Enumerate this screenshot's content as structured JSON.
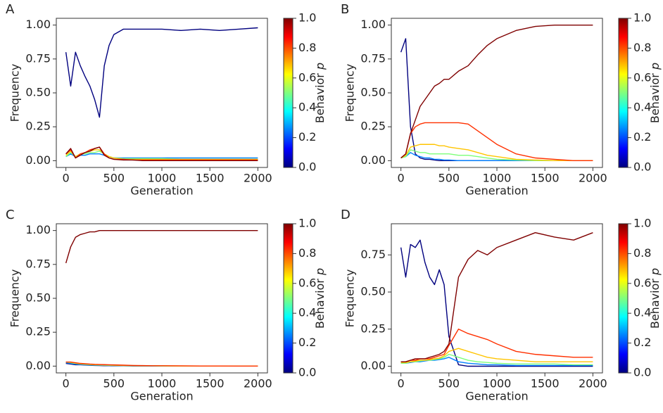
{
  "chart_data": [
    {
      "type": "line",
      "label": "A",
      "x_label": "Generation",
      "y_label": "Frequency",
      "xlim": [
        -100,
        2100
      ],
      "xticks": [
        0,
        500,
        1000,
        1500,
        2000
      ],
      "ylim": [
        -0.05,
        1.05
      ],
      "yticks": [
        {
          "value": 0,
          "label": "0.00"
        },
        {
          "value": 0.25,
          "label": "0.25"
        },
        {
          "value": 0.5,
          "label": "0.50"
        },
        {
          "value": 0.75,
          "label": "0.75"
        },
        {
          "value": 1,
          "label": "1.00"
        }
      ],
      "x": [
        0,
        50,
        100,
        150,
        200,
        250,
        300,
        350,
        400,
        450,
        500,
        600,
        700,
        800,
        900,
        1000,
        1200,
        1400,
        1600,
        1800,
        2000
      ],
      "series": [
        {
          "color": "#00007f",
          "values": [
            0.8,
            0.55,
            0.8,
            0.7,
            0.62,
            0.55,
            0.45,
            0.32,
            0.7,
            0.85,
            0.93,
            0.97,
            0.97,
            0.97,
            0.97,
            0.97,
            0.96,
            0.97,
            0.96,
            0.97,
            0.98
          ]
        },
        {
          "color": "#0080ff",
          "values": [
            0.03,
            0.05,
            0.03,
            0.04,
            0.04,
            0.05,
            0.05,
            0.05,
            0.04,
            0.03,
            0.02,
            0.02,
            0.02,
            0.02,
            0.02,
            0.02,
            0.02,
            0.02,
            0.02,
            0.02,
            0.02
          ]
        },
        {
          "color": "#7dff7a",
          "values": [
            0.03,
            0.06,
            0.03,
            0.05,
            0.05,
            0.06,
            0.06,
            0.07,
            0.05,
            0.03,
            0.02,
            0.015,
            0.015,
            0.015,
            0.015,
            0.015,
            0.01,
            0.01,
            0.01,
            0.01,
            0.01
          ]
        },
        {
          "color": "#ffc400",
          "values": [
            0.04,
            0.07,
            0.03,
            0.05,
            0.06,
            0.07,
            0.08,
            0.08,
            0.05,
            0.03,
            0.02,
            0.01,
            0.01,
            0.01,
            0.01,
            0.01,
            0.01,
            0.01,
            0.01,
            0.01,
            0.01
          ]
        },
        {
          "color": "#ff3000",
          "values": [
            0.05,
            0.08,
            0.02,
            0.05,
            0.06,
            0.08,
            0.09,
            0.1,
            0.05,
            0.02,
            0.01,
            0.01,
            0.005,
            0.005,
            0.005,
            0.005,
            0.005,
            0.005,
            0.005,
            0.005,
            0.005
          ]
        },
        {
          "color": "#7f0000",
          "values": [
            0.05,
            0.09,
            0.02,
            0.04,
            0.06,
            0.07,
            0.09,
            0.1,
            0.04,
            0.02,
            0.01,
            0.005,
            0.005,
            0,
            0,
            0,
            0,
            0,
            0,
            0,
            0
          ]
        }
      ],
      "colorbar": {
        "colors": [
          "#00007f",
          "#0000ff",
          "#007fff",
          "#00ffff",
          "#7fff7f",
          "#ffff00",
          "#ff7f00",
          "#ff0000",
          "#7f0000"
        ],
        "lim": [
          0,
          1
        ],
        "ticks": [
          {
            "value": 0,
            "label": "0.0"
          },
          {
            "value": 0.2,
            "label": "0.2"
          },
          {
            "value": 0.4,
            "label": "0.4"
          },
          {
            "value": 0.6,
            "label": "0.6"
          },
          {
            "value": 0.8,
            "label": "0.8"
          },
          {
            "value": 1,
            "label": "1.0"
          }
        ],
        "label": "Behavior",
        "symbol": "p"
      }
    },
    {
      "type": "line",
      "label": "B",
      "x_label": "Generation",
      "y_label": "Frequency",
      "xlim": [
        -100,
        2100
      ],
      "xticks": [
        0,
        500,
        1000,
        1500,
        2000
      ],
      "ylim": [
        -0.05,
        1.05
      ],
      "yticks": [
        {
          "value": 0,
          "label": "0.00"
        },
        {
          "value": 0.25,
          "label": "0.25"
        },
        {
          "value": 0.5,
          "label": "0.50"
        },
        {
          "value": 0.75,
          "label": "0.75"
        },
        {
          "value": 1,
          "label": "1.00"
        }
      ],
      "x": [
        0,
        50,
        100,
        150,
        200,
        250,
        300,
        350,
        400,
        450,
        500,
        600,
        700,
        800,
        900,
        1000,
        1200,
        1400,
        1600,
        1800,
        2000
      ],
      "series": [
        {
          "color": "#00007f",
          "values": [
            0.8,
            0.9,
            0.25,
            0.05,
            0.02,
            0.01,
            0.01,
            0.005,
            0,
            0,
            0,
            0,
            0,
            0,
            0,
            0,
            0,
            0,
            0,
            0,
            0
          ]
        },
        {
          "color": "#0080ff",
          "values": [
            0.02,
            0.03,
            0.06,
            0.04,
            0.03,
            0.02,
            0.02,
            0.01,
            0.01,
            0.005,
            0.005,
            0,
            0,
            0,
            0,
            0,
            0,
            0,
            0,
            0,
            0
          ]
        },
        {
          "color": "#7dff7a",
          "values": [
            0.02,
            0.03,
            0.08,
            0.07,
            0.06,
            0.06,
            0.05,
            0.05,
            0.05,
            0.05,
            0.05,
            0.04,
            0.04,
            0.03,
            0.02,
            0.01,
            0.005,
            0,
            0,
            0,
            0
          ]
        },
        {
          "color": "#ffc400",
          "values": [
            0.02,
            0.04,
            0.1,
            0.11,
            0.12,
            0.12,
            0.12,
            0.12,
            0.11,
            0.11,
            0.1,
            0.09,
            0.08,
            0.06,
            0.04,
            0.03,
            0.01,
            0.005,
            0,
            0,
            0
          ]
        },
        {
          "color": "#ff3000",
          "values": [
            0.02,
            0.05,
            0.2,
            0.25,
            0.27,
            0.28,
            0.28,
            0.28,
            0.28,
            0.28,
            0.28,
            0.28,
            0.27,
            0.22,
            0.17,
            0.12,
            0.05,
            0.02,
            0.01,
            0,
            0
          ]
        },
        {
          "color": "#7f0000",
          "values": [
            0.02,
            0.05,
            0.2,
            0.3,
            0.4,
            0.45,
            0.5,
            0.55,
            0.57,
            0.6,
            0.6,
            0.66,
            0.7,
            0.78,
            0.85,
            0.9,
            0.96,
            0.99,
            1,
            1,
            1
          ]
        }
      ],
      "colorbar": {
        "colors": [
          "#00007f",
          "#0000ff",
          "#007fff",
          "#00ffff",
          "#7fff7f",
          "#ffff00",
          "#ff7f00",
          "#ff0000",
          "#7f0000"
        ],
        "lim": [
          0,
          1
        ],
        "ticks": [
          {
            "value": 0,
            "label": "0.0"
          },
          {
            "value": 0.2,
            "label": "0.2"
          },
          {
            "value": 0.4,
            "label": "0.4"
          },
          {
            "value": 0.6,
            "label": "0.6"
          },
          {
            "value": 0.8,
            "label": "0.8"
          },
          {
            "value": 1,
            "label": "1.0"
          }
        ],
        "label": "Behavior",
        "symbol": "p"
      }
    },
    {
      "type": "line",
      "label": "C",
      "x_label": "Generation",
      "y_label": "Frequency",
      "xlim": [
        -100,
        2100
      ],
      "xticks": [
        0,
        500,
        1000,
        1500,
        2000
      ],
      "ylim": [
        -0.05,
        1.05
      ],
      "yticks": [
        {
          "value": 0,
          "label": "0.00"
        },
        {
          "value": 0.25,
          "label": "0.25"
        },
        {
          "value": 0.5,
          "label": "0.50"
        },
        {
          "value": 0.75,
          "label": "0.75"
        },
        {
          "value": 1,
          "label": "1.00"
        }
      ],
      "x": [
        0,
        50,
        100,
        150,
        200,
        250,
        300,
        350,
        400,
        450,
        500,
        600,
        700,
        800,
        900,
        1000,
        1200,
        1400,
        1600,
        1800,
        2000
      ],
      "series": [
        {
          "color": "#00007f",
          "values": [
            0.02,
            0.015,
            0.01,
            0.01,
            0.008,
            0.006,
            0.005,
            0.004,
            0.003,
            0.003,
            0.002,
            0.002,
            0.001,
            0.001,
            0.001,
            0,
            0,
            0,
            0,
            0,
            0
          ]
        },
        {
          "color": "#0080ff",
          "values": [
            0.025,
            0.02,
            0.015,
            0.012,
            0.01,
            0.008,
            0.007,
            0.006,
            0.005,
            0.004,
            0.004,
            0.003,
            0.002,
            0.002,
            0.001,
            0.001,
            0,
            0,
            0,
            0,
            0
          ]
        },
        {
          "color": "#7dff7a",
          "values": [
            0.03,
            0.025,
            0.02,
            0.016,
            0.013,
            0.011,
            0.009,
            0.008,
            0.007,
            0.006,
            0.005,
            0.004,
            0.003,
            0.002,
            0.002,
            0.001,
            0.001,
            0,
            0,
            0,
            0
          ]
        },
        {
          "color": "#ffc400",
          "values": [
            0.03,
            0.028,
            0.022,
            0.018,
            0.015,
            0.013,
            0.011,
            0.01,
            0.009,
            0.008,
            0.007,
            0.005,
            0.004,
            0.003,
            0.002,
            0.002,
            0.001,
            0.001,
            0,
            0,
            0
          ]
        },
        {
          "color": "#ff3000",
          "values": [
            0.03,
            0.03,
            0.025,
            0.02,
            0.018,
            0.015,
            0.013,
            0.012,
            0.011,
            0.01,
            0.009,
            0.007,
            0.005,
            0.004,
            0.003,
            0.003,
            0.002,
            0.001,
            0.001,
            0,
            0
          ]
        },
        {
          "color": "#7f0000",
          "values": [
            0.76,
            0.88,
            0.95,
            0.97,
            0.98,
            0.99,
            0.99,
            1,
            1,
            1,
            1,
            1,
            1,
            1,
            1,
            1,
            1,
            1,
            1,
            1,
            1
          ]
        }
      ],
      "colorbar": {
        "colors": [
          "#00007f",
          "#0000ff",
          "#007fff",
          "#00ffff",
          "#7fff7f",
          "#ffff00",
          "#ff7f00",
          "#ff0000",
          "#7f0000"
        ],
        "lim": [
          0,
          1
        ],
        "ticks": [
          {
            "value": 0,
            "label": "0.0"
          },
          {
            "value": 0.2,
            "label": "0.2"
          },
          {
            "value": 0.4,
            "label": "0.4"
          },
          {
            "value": 0.6,
            "label": "0.6"
          },
          {
            "value": 0.8,
            "label": "0.8"
          },
          {
            "value": 1,
            "label": "1.0"
          }
        ],
        "label": "Behavior",
        "symbol": "p"
      }
    },
    {
      "type": "line",
      "label": "D",
      "x_label": "Generation",
      "y_label": "Frequency",
      "xlim": [
        -100,
        2100
      ],
      "xticks": [
        0,
        500,
        1000,
        1500,
        2000
      ],
      "ylim": [
        -0.045,
        0.96
      ],
      "yticks": [
        {
          "value": 0,
          "label": "0.00"
        },
        {
          "value": 0.25,
          "label": "0.25"
        },
        {
          "value": 0.5,
          "label": "0.50"
        },
        {
          "value": 0.75,
          "label": "0.75"
        }
      ],
      "x": [
        0,
        50,
        100,
        150,
        200,
        250,
        300,
        350,
        400,
        450,
        500,
        600,
        700,
        800,
        900,
        1000,
        1200,
        1400,
        1600,
        1800,
        2000
      ],
      "series": [
        {
          "color": "#00007f",
          "values": [
            0.8,
            0.6,
            0.82,
            0.8,
            0.85,
            0.7,
            0.6,
            0.55,
            0.65,
            0.55,
            0.2,
            0.01,
            0,
            0,
            0,
            0,
            0,
            0,
            0,
            0,
            0
          ]
        },
        {
          "color": "#0080ff",
          "values": [
            0.02,
            0.02,
            0.025,
            0.03,
            0.03,
            0.035,
            0.04,
            0.04,
            0.045,
            0.05,
            0.06,
            0.03,
            0.02,
            0.015,
            0.01,
            0.01,
            0.005,
            0.005,
            0.005,
            0.005,
            0.005
          ]
        },
        {
          "color": "#7dff7a",
          "values": [
            0.02,
            0.02,
            0.03,
            0.03,
            0.035,
            0.04,
            0.04,
            0.045,
            0.05,
            0.06,
            0.08,
            0.06,
            0.04,
            0.03,
            0.025,
            0.02,
            0.015,
            0.015,
            0.015,
            0.01,
            0.01
          ]
        },
        {
          "color": "#ffc400",
          "values": [
            0.025,
            0.025,
            0.03,
            0.035,
            0.04,
            0.04,
            0.045,
            0.05,
            0.055,
            0.07,
            0.1,
            0.12,
            0.1,
            0.08,
            0.06,
            0.05,
            0.04,
            0.03,
            0.03,
            0.03,
            0.03
          ]
        },
        {
          "color": "#ff3000",
          "values": [
            0.03,
            0.03,
            0.04,
            0.04,
            0.05,
            0.05,
            0.05,
            0.06,
            0.07,
            0.08,
            0.14,
            0.25,
            0.22,
            0.2,
            0.18,
            0.15,
            0.1,
            0.08,
            0.07,
            0.06,
            0.06
          ]
        },
        {
          "color": "#7f0000",
          "values": [
            0.03,
            0.03,
            0.04,
            0.05,
            0.05,
            0.05,
            0.06,
            0.07,
            0.08,
            0.1,
            0.15,
            0.6,
            0.72,
            0.78,
            0.75,
            0.8,
            0.85,
            0.9,
            0.87,
            0.85,
            0.9
          ]
        }
      ],
      "colorbar": {
        "colors": [
          "#00007f",
          "#0000ff",
          "#007fff",
          "#00ffff",
          "#7fff7f",
          "#ffff00",
          "#ff7f00",
          "#ff0000",
          "#7f0000"
        ],
        "lim": [
          0,
          1
        ],
        "ticks": [
          {
            "value": 0,
            "label": "0.0"
          },
          {
            "value": 0.2,
            "label": "0.2"
          },
          {
            "value": 0.4,
            "label": "0.4"
          },
          {
            "value": 0.6,
            "label": "0.6"
          },
          {
            "value": 0.8,
            "label": "0.8"
          },
          {
            "value": 1,
            "label": "1.0"
          }
        ],
        "label": "Behavior",
        "symbol": "p"
      }
    }
  ]
}
